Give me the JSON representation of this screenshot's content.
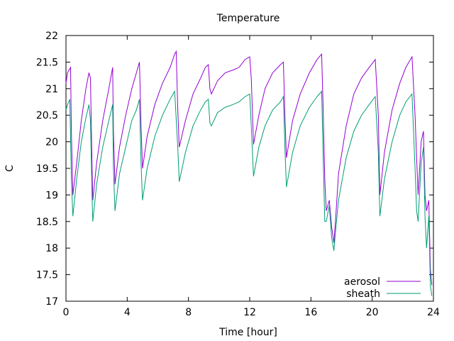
{
  "chart_data": {
    "type": "line",
    "title": "Temperature",
    "xlabel": "Time [hour]",
    "ylabel": "C",
    "xlim": [
      0,
      24
    ],
    "ylim": [
      17,
      22
    ],
    "xticks": [
      0,
      4,
      8,
      12,
      16,
      20,
      24
    ],
    "yticks": [
      17,
      17.5,
      18,
      18.5,
      19,
      19.5,
      20,
      20.5,
      21,
      21.5,
      22
    ],
    "grid": false,
    "legend_position": "bottom-right",
    "series": [
      {
        "name": "aerosol",
        "color": "#9400d3",
        "points": [
          [
            0,
            21.1
          ],
          [
            0.1,
            21.3
          ],
          [
            0.2,
            21.35
          ],
          [
            0.3,
            21.4
          ],
          [
            0.35,
            20.2
          ],
          [
            0.45,
            19.0
          ],
          [
            0.7,
            19.6
          ],
          [
            1.0,
            20.4
          ],
          [
            1.3,
            21.0
          ],
          [
            1.5,
            21.3
          ],
          [
            1.6,
            21.2
          ],
          [
            1.7,
            19.6
          ],
          [
            1.75,
            18.9
          ],
          [
            2.0,
            19.6
          ],
          [
            2.4,
            20.4
          ],
          [
            2.8,
            21.0
          ],
          [
            3.05,
            21.4
          ],
          [
            3.1,
            20.2
          ],
          [
            3.2,
            19.2
          ],
          [
            3.5,
            19.9
          ],
          [
            3.9,
            20.5
          ],
          [
            4.3,
            21.0
          ],
          [
            4.6,
            21.3
          ],
          [
            4.8,
            21.5
          ],
          [
            4.9,
            20.3
          ],
          [
            5.0,
            19.5
          ],
          [
            5.3,
            20.1
          ],
          [
            5.8,
            20.7
          ],
          [
            6.3,
            21.1
          ],
          [
            6.8,
            21.4
          ],
          [
            7.1,
            21.65
          ],
          [
            7.2,
            21.7
          ],
          [
            7.3,
            20.6
          ],
          [
            7.4,
            19.9
          ],
          [
            7.8,
            20.4
          ],
          [
            8.3,
            20.9
          ],
          [
            8.8,
            21.2
          ],
          [
            9.1,
            21.4
          ],
          [
            9.3,
            21.45
          ],
          [
            9.4,
            21.0
          ],
          [
            9.5,
            20.9
          ],
          [
            9.9,
            21.15
          ],
          [
            10.4,
            21.3
          ],
          [
            10.9,
            21.35
          ],
          [
            11.3,
            21.4
          ],
          [
            11.7,
            21.55
          ],
          [
            12.0,
            21.6
          ],
          [
            12.1,
            21.2
          ],
          [
            12.25,
            19.95
          ],
          [
            12.6,
            20.5
          ],
          [
            13.0,
            21.0
          ],
          [
            13.5,
            21.3
          ],
          [
            14.0,
            21.45
          ],
          [
            14.2,
            21.5
          ],
          [
            14.3,
            20.5
          ],
          [
            14.4,
            19.7
          ],
          [
            14.8,
            20.4
          ],
          [
            15.3,
            20.9
          ],
          [
            15.9,
            21.3
          ],
          [
            16.4,
            21.55
          ],
          [
            16.7,
            21.65
          ],
          [
            16.8,
            20.6
          ],
          [
            16.9,
            19.3
          ],
          [
            17.0,
            18.7
          ],
          [
            17.2,
            18.9
          ],
          [
            17.35,
            18.4
          ],
          [
            17.5,
            18.1
          ],
          [
            17.6,
            18.5
          ],
          [
            17.8,
            19.4
          ],
          [
            18.3,
            20.3
          ],
          [
            18.8,
            20.9
          ],
          [
            19.3,
            21.2
          ],
          [
            19.8,
            21.4
          ],
          [
            20.2,
            21.55
          ],
          [
            20.4,
            20.5
          ],
          [
            20.5,
            19.0
          ],
          [
            20.8,
            19.8
          ],
          [
            21.3,
            20.6
          ],
          [
            21.8,
            21.1
          ],
          [
            22.2,
            21.4
          ],
          [
            22.6,
            21.6
          ],
          [
            22.8,
            20.5
          ],
          [
            22.9,
            19.7
          ],
          [
            23.0,
            19.0
          ],
          [
            23.2,
            20.0
          ],
          [
            23.35,
            20.2
          ],
          [
            23.45,
            19.0
          ],
          [
            23.55,
            18.7
          ],
          [
            23.7,
            18.9
          ],
          [
            23.8,
            17.6
          ],
          [
            23.9,
            17.3
          ]
        ]
      },
      {
        "name": "sheath",
        "color": "#009e73",
        "points": [
          [
            0,
            20.6
          ],
          [
            0.1,
            20.7
          ],
          [
            0.25,
            20.8
          ],
          [
            0.35,
            19.3
          ],
          [
            0.45,
            18.6
          ],
          [
            0.7,
            19.3
          ],
          [
            1.0,
            20.0
          ],
          [
            1.3,
            20.45
          ],
          [
            1.5,
            20.7
          ],
          [
            1.6,
            20.4
          ],
          [
            1.7,
            19.0
          ],
          [
            1.75,
            18.5
          ],
          [
            2.0,
            19.2
          ],
          [
            2.4,
            19.9
          ],
          [
            2.8,
            20.4
          ],
          [
            3.05,
            20.7
          ],
          [
            3.1,
            19.5
          ],
          [
            3.2,
            18.7
          ],
          [
            3.5,
            19.4
          ],
          [
            3.9,
            19.9
          ],
          [
            4.3,
            20.4
          ],
          [
            4.6,
            20.6
          ],
          [
            4.8,
            20.8
          ],
          [
            4.9,
            19.6
          ],
          [
            5.0,
            18.9
          ],
          [
            5.3,
            19.5
          ],
          [
            5.8,
            20.1
          ],
          [
            6.3,
            20.5
          ],
          [
            6.8,
            20.8
          ],
          [
            7.1,
            20.95
          ],
          [
            7.3,
            19.9
          ],
          [
            7.4,
            19.25
          ],
          [
            7.8,
            19.8
          ],
          [
            8.3,
            20.3
          ],
          [
            8.8,
            20.6
          ],
          [
            9.1,
            20.75
          ],
          [
            9.3,
            20.8
          ],
          [
            9.4,
            20.35
          ],
          [
            9.5,
            20.3
          ],
          [
            9.9,
            20.55
          ],
          [
            10.4,
            20.65
          ],
          [
            10.9,
            20.7
          ],
          [
            11.3,
            20.75
          ],
          [
            11.7,
            20.85
          ],
          [
            12.0,
            20.9
          ],
          [
            12.1,
            20.3
          ],
          [
            12.25,
            19.35
          ],
          [
            12.6,
            19.9
          ],
          [
            13.0,
            20.3
          ],
          [
            13.5,
            20.6
          ],
          [
            14.0,
            20.75
          ],
          [
            14.2,
            20.85
          ],
          [
            14.3,
            19.9
          ],
          [
            14.4,
            19.15
          ],
          [
            14.8,
            19.8
          ],
          [
            15.3,
            20.3
          ],
          [
            15.9,
            20.65
          ],
          [
            16.4,
            20.85
          ],
          [
            16.7,
            20.95
          ],
          [
            16.8,
            19.7
          ],
          [
            16.9,
            18.5
          ],
          [
            17.0,
            18.5
          ],
          [
            17.2,
            18.8
          ],
          [
            17.35,
            18.2
          ],
          [
            17.5,
            17.95
          ],
          [
            17.6,
            18.3
          ],
          [
            17.8,
            18.9
          ],
          [
            18.3,
            19.7
          ],
          [
            18.8,
            20.2
          ],
          [
            19.3,
            20.5
          ],
          [
            19.8,
            20.7
          ],
          [
            20.2,
            20.85
          ],
          [
            20.4,
            19.8
          ],
          [
            20.5,
            18.6
          ],
          [
            20.8,
            19.3
          ],
          [
            21.3,
            20.0
          ],
          [
            21.8,
            20.5
          ],
          [
            22.2,
            20.75
          ],
          [
            22.6,
            20.9
          ],
          [
            22.8,
            19.5
          ],
          [
            22.9,
            18.7
          ],
          [
            23.0,
            18.5
          ],
          [
            23.2,
            19.6
          ],
          [
            23.35,
            19.9
          ],
          [
            23.45,
            18.6
          ],
          [
            23.55,
            18.0
          ],
          [
            23.7,
            18.6
          ],
          [
            23.8,
            17.3
          ],
          [
            23.9,
            17.1
          ]
        ]
      }
    ]
  }
}
